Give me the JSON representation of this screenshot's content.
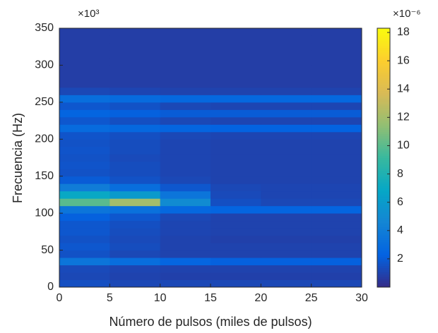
{
  "chart_data": {
    "type": "heatmap",
    "x_label": "Número de pulsos (miles de pulsos)",
    "y_label": "Frecuencia (Hz)",
    "y_multiplier": "×10³",
    "colorbar_multiplier": "×10⁻⁶",
    "x_edges": [
      0,
      5,
      10,
      15,
      20,
      25,
      30
    ],
    "y_edges": [
      0,
      10,
      20,
      30,
      40,
      50,
      60,
      70,
      80,
      90,
      100,
      110,
      120,
      130,
      140,
      150,
      160,
      170,
      180,
      190,
      200,
      210,
      220,
      230,
      240,
      250,
      260,
      270,
      280,
      290,
      300,
      310,
      320,
      330,
      340,
      350
    ],
    "z": [
      [
        1.5,
        1.2,
        1.2,
        1.2,
        1.2,
        1.2
      ],
      [
        1.2,
        1.0,
        0.9,
        0.9,
        0.9,
        0.9
      ],
      [
        1.3,
        1.1,
        1.0,
        1.0,
        1.0,
        1.0
      ],
      [
        3.5,
        3.0,
        2.5,
        2.2,
        2.2,
        2.2
      ],
      [
        1.6,
        1.2,
        1.0,
        1.0,
        1.0,
        1.0
      ],
      [
        1.8,
        1.4,
        1.0,
        1.0,
        1.0,
        1.0
      ],
      [
        1.6,
        1.3,
        1.0,
        0.9,
        0.9,
        0.9
      ],
      [
        1.8,
        1.4,
        1.1,
        1.0,
        1.0,
        1.0
      ],
      [
        1.8,
        1.5,
        1.1,
        1.0,
        1.0,
        1.0
      ],
      [
        2.2,
        1.8,
        1.2,
        1.0,
        1.0,
        1.0
      ],
      [
        3.5,
        3.2,
        2.6,
        2.4,
        2.4,
        2.4
      ],
      [
        10,
        12,
        5,
        1.5,
        1.2,
        1.2
      ],
      [
        7,
        6,
        3.5,
        1.3,
        1.1,
        1.1
      ],
      [
        4,
        3,
        1.8,
        1.2,
        1.1,
        1.1
      ],
      [
        2.0,
        1.6,
        1.2,
        1.0,
        1.0,
        1.0
      ],
      [
        1.6,
        1.4,
        1.1,
        1.0,
        1.0,
        1.0
      ],
      [
        1.7,
        1.4,
        1.1,
        1.0,
        1.0,
        1.0
      ],
      [
        1.6,
        1.3,
        1.1,
        1.0,
        1.0,
        1.0
      ],
      [
        1.7,
        1.4,
        1.1,
        1.0,
        1.0,
        1.0
      ],
      [
        1.6,
        1.4,
        1.1,
        1.0,
        1.0,
        1.0
      ],
      [
        1.7,
        1.5,
        1.2,
        1.1,
        1.1,
        1.1
      ],
      [
        2.8,
        2.6,
        2.4,
        2.3,
        2.3,
        2.3
      ],
      [
        1.8,
        1.5,
        1.2,
        1.1,
        1.1,
        1.1
      ],
      [
        2.4,
        2.2,
        2.0,
        2.0,
        2.0,
        2.0
      ],
      [
        1.8,
        1.6,
        1.2,
        1.1,
        1.1,
        1.1
      ],
      [
        3.0,
        2.8,
        2.6,
        2.6,
        2.6,
        2.6
      ],
      [
        1.2,
        1.1,
        1.0,
        1.0,
        1.0,
        1.0
      ],
      [
        0.8,
        0.8,
        0.8,
        0.8,
        0.8,
        0.8
      ],
      [
        0.8,
        0.8,
        0.8,
        0.8,
        0.8,
        0.8
      ],
      [
        0.8,
        0.8,
        0.8,
        0.8,
        0.8,
        0.8
      ],
      [
        0.8,
        0.8,
        0.8,
        0.8,
        0.8,
        0.8
      ],
      [
        0.8,
        0.8,
        0.8,
        0.8,
        0.8,
        0.8
      ],
      [
        0.8,
        0.8,
        0.8,
        0.8,
        0.8,
        0.8
      ],
      [
        0.8,
        0.8,
        0.8,
        0.8,
        0.8,
        0.8
      ],
      [
        0.8,
        0.8,
        0.8,
        0.8,
        0.8,
        0.8
      ]
    ],
    "xlim": [
      0,
      30
    ],
    "xticks": [
      0,
      5,
      10,
      15,
      20,
      25,
      30
    ],
    "ylim": [
      0,
      350
    ],
    "yticks": [
      0,
      50,
      100,
      150,
      200,
      250,
      300,
      350
    ],
    "clim": [
      0,
      18.3
    ],
    "cticks": [
      2,
      4,
      6,
      8,
      10,
      12,
      14,
      16,
      18
    ],
    "colormap": [
      "#352a87",
      "#0363e1",
      "#1485d4",
      "#06a7c6",
      "#38b99e",
      "#92bf73",
      "#d9ba56",
      "#fcce2e",
      "#f9fb0e"
    ]
  }
}
